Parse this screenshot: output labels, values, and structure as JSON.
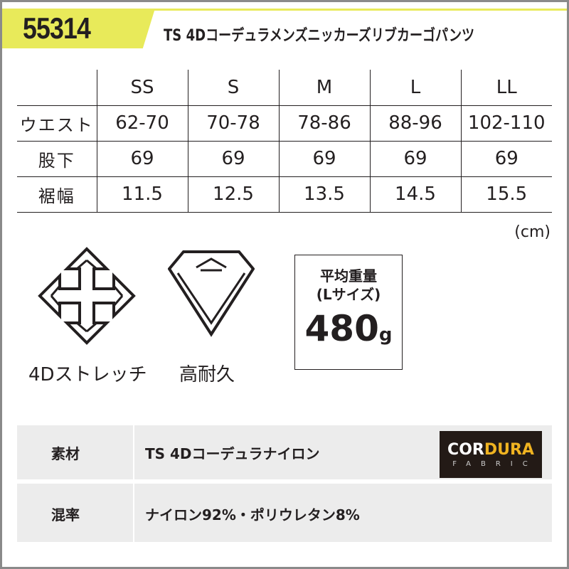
{
  "header": {
    "code": "55314",
    "title": "TS 4Dコーデュラメンズニッカーズリブカーゴパンツ"
  },
  "size_table": {
    "columns": [
      "SS",
      "S",
      "M",
      "L",
      "LL"
    ],
    "rows": [
      {
        "label": "ウエスト",
        "values": [
          "62-70",
          "70-78",
          "78-86",
          "88-96",
          "102-110"
        ]
      },
      {
        "label": "股下",
        "values": [
          "69",
          "69",
          "69",
          "69",
          "69"
        ]
      },
      {
        "label": "裾幅",
        "values": [
          "11.5",
          "12.5",
          "13.5",
          "14.5",
          "15.5"
        ]
      }
    ],
    "unit": "(cm)"
  },
  "features": [
    {
      "label": "4Dストレッチ",
      "icon": "four-way-arrows-icon"
    },
    {
      "label": "高耐久",
      "icon": "diamond-icon"
    }
  ],
  "weight": {
    "line1": "平均重量",
    "line2": "(Lサイズ)",
    "value": "480",
    "unit": "g"
  },
  "specs": [
    {
      "key": "素材",
      "value": "TS 4Dコーデュラナイロン"
    },
    {
      "key": "混率",
      "value": "ナイロン92%・ポリウレタン8%"
    }
  ],
  "logo": {
    "text1": "COR",
    "text2": "DURA",
    "sub": "FABRIC"
  },
  "colors": {
    "accent": "#e8ea5a",
    "text": "#231f20",
    "spec_bg": "#ececec"
  }
}
